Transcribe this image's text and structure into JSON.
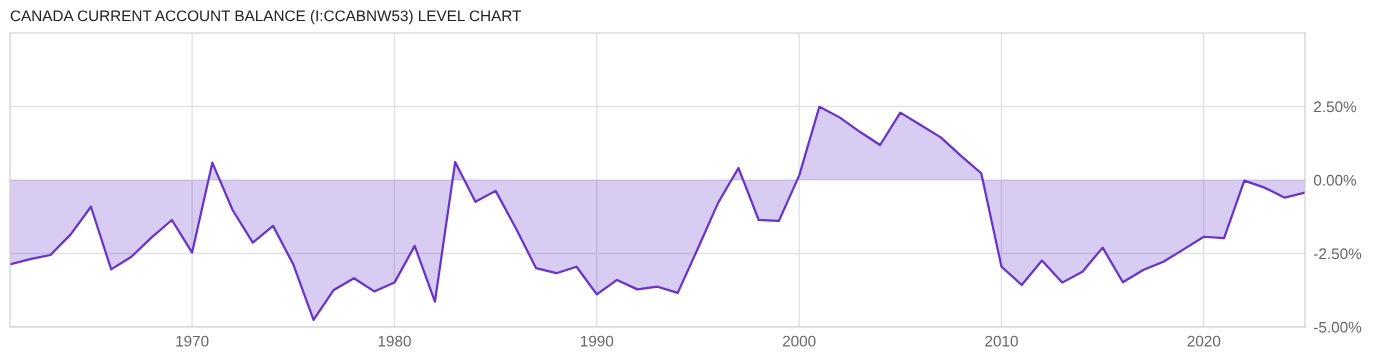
{
  "chart_data": {
    "type": "area",
    "title": "CANADA CURRENT ACCOUNT BALANCE (I:CCABNW53) LEVEL CHART",
    "x": [
      1961,
      1962,
      1963,
      1964,
      1965,
      1966,
      1967,
      1968,
      1969,
      1970,
      1971,
      1972,
      1973,
      1974,
      1975,
      1976,
      1977,
      1978,
      1979,
      1980,
      1981,
      1982,
      1983,
      1984,
      1985,
      1986,
      1987,
      1988,
      1989,
      1990,
      1991,
      1992,
      1993,
      1994,
      1995,
      1996,
      1997,
      1998,
      1999,
      2000,
      2001,
      2002,
      2003,
      2004,
      2005,
      2006,
      2007,
      2008,
      2009,
      2010,
      2011,
      2012,
      2013,
      2014,
      2015,
      2016,
      2017,
      2018,
      2019,
      2020,
      2021,
      2022,
      2023,
      2024,
      2025
    ],
    "series": [
      {
        "color": "#6633cc",
        "values": [
          -2.87,
          -2.69,
          -2.55,
          -1.85,
          -0.91,
          -3.04,
          -2.61,
          -1.95,
          -1.36,
          -2.47,
          0.59,
          -1.02,
          -2.13,
          -1.56,
          -2.87,
          -4.76,
          -3.74,
          -3.34,
          -3.79,
          -3.49,
          -2.24,
          -4.14,
          0.61,
          -0.74,
          -0.37,
          -1.64,
          -3.0,
          -3.17,
          -2.95,
          -3.89,
          -3.4,
          -3.72,
          -3.63,
          -3.84,
          -2.32,
          -0.77,
          0.41,
          -1.36,
          -1.39,
          0.15,
          2.49,
          2.13,
          1.64,
          1.19,
          2.29,
          1.87,
          1.45,
          0.82,
          0.23,
          -2.95,
          -3.57,
          -2.74,
          -3.49,
          -3.12,
          -2.3,
          -3.48,
          -3.06,
          -2.78,
          -2.36,
          -1.93,
          -1.98,
          -0.02,
          -0.26,
          -0.6,
          -0.43
        ]
      }
    ],
    "xlim": [
      1961,
      2025
    ],
    "xticks": [
      1970,
      1980,
      1990,
      2000,
      2010,
      2020
    ],
    "ylim": [
      -5,
      5
    ],
    "yticks": [
      {
        "value": -5,
        "label": "-5.00%"
      },
      {
        "value": -2.5,
        "label": "-2.50%"
      },
      {
        "value": 0,
        "label": "0.00%"
      },
      {
        "value": 2.5,
        "label": "2.50%"
      }
    ],
    "grid": true,
    "legend": false
  }
}
